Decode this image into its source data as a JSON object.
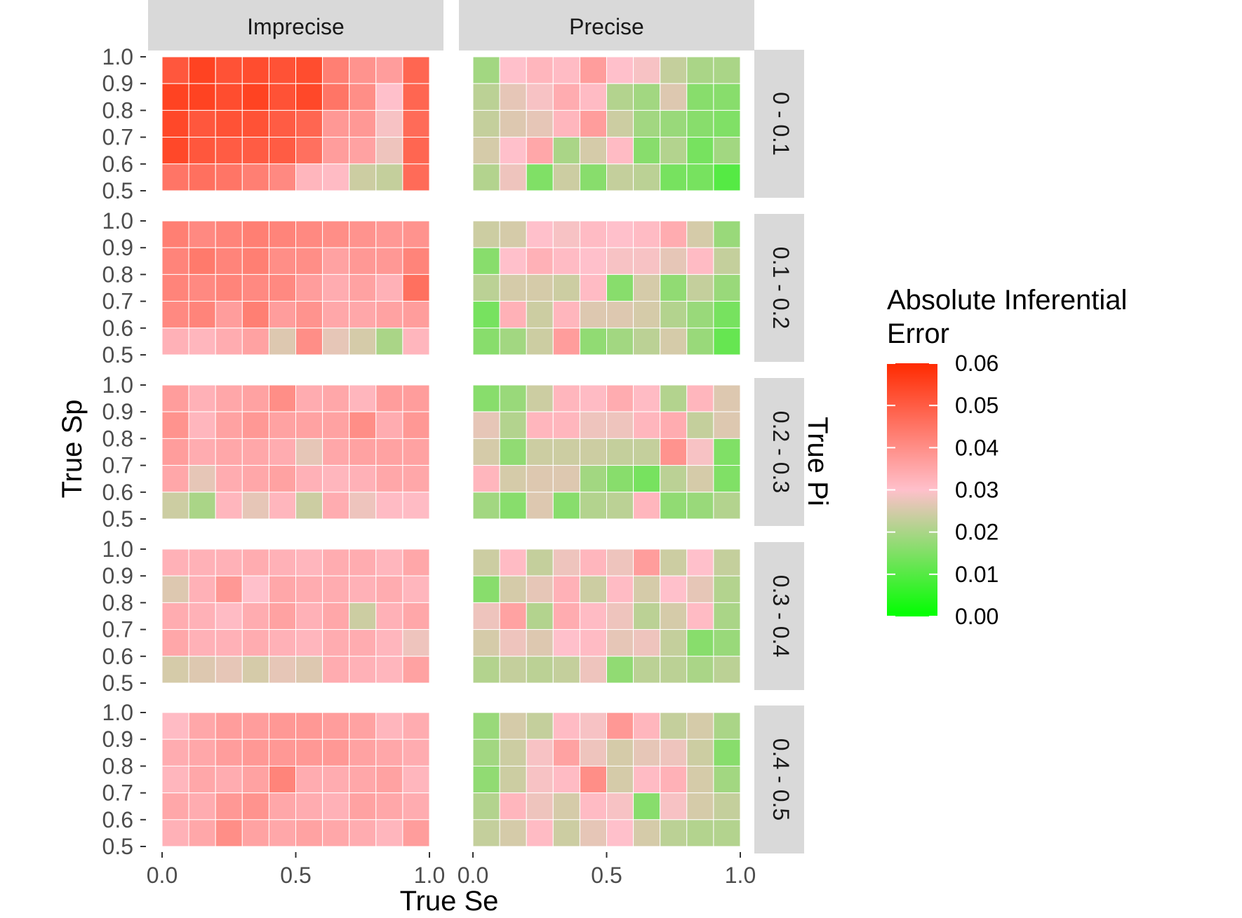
{
  "chart_data": {
    "type": "heatmap",
    "facet_columns": [
      "Imprecise",
      "Precise"
    ],
    "facet_rows": [
      "0 - 0.1",
      "0.1 - 0.2",
      "0.2 - 0.3",
      "0.3 - 0.4",
      "0.4 - 0.5"
    ],
    "xlabel": "True Se",
    "ylabel": "True Sp",
    "row_strip_title": "True Pi",
    "x_ticks": [
      "0.0",
      "0.5",
      "1.0"
    ],
    "y_ticks": [
      "0.5",
      "0.6",
      "0.7",
      "0.8",
      "0.9",
      "1.0"
    ],
    "xlim": [
      0,
      1
    ],
    "ylim": [
      0.5,
      1
    ],
    "n_x": 10,
    "n_y": 5,
    "legend": {
      "title": "Absolute Inferential Error",
      "title_lines": [
        "Absolute Inferential",
        "Error"
      ],
      "ticks": [
        "0.06",
        "0.05",
        "0.04",
        "0.03",
        "0.02",
        "0.01",
        "0.00"
      ],
      "range": [
        0,
        0.06
      ],
      "colors": {
        "low": "#00ff00",
        "mid": "#ffc0cb",
        "high": "#ff2a00"
      },
      "midpoint": 0.03,
      "placement": "right"
    },
    "panels": [
      {
        "pi": "0 - 0.1",
        "precision": "Imprecise",
        "values": [
          [
            0.051,
            0.055,
            0.052,
            0.053,
            0.052,
            0.053,
            0.043,
            0.039,
            0.037,
            0.048
          ],
          [
            0.055,
            0.055,
            0.053,
            0.055,
            0.052,
            0.054,
            0.045,
            0.04,
            0.03,
            0.048
          ],
          [
            0.054,
            0.051,
            0.052,
            0.052,
            0.05,
            0.048,
            0.038,
            0.038,
            0.029,
            0.047
          ],
          [
            0.054,
            0.051,
            0.05,
            0.05,
            0.05,
            0.046,
            0.037,
            0.036,
            0.028,
            0.048
          ],
          [
            0.045,
            0.046,
            0.045,
            0.043,
            0.041,
            0.032,
            0.031,
            0.024,
            0.023,
            0.047
          ]
        ]
      },
      {
        "pi": "0 - 0.1",
        "precision": "Precise",
        "values": [
          [
            0.019,
            0.03,
            0.032,
            0.031,
            0.037,
            0.03,
            0.029,
            0.023,
            0.02,
            0.02
          ],
          [
            0.022,
            0.027,
            0.029,
            0.034,
            0.031,
            0.021,
            0.019,
            0.026,
            0.016,
            0.016
          ],
          [
            0.023,
            0.026,
            0.027,
            0.032,
            0.037,
            0.024,
            0.019,
            0.018,
            0.016,
            0.015
          ],
          [
            0.025,
            0.03,
            0.035,
            0.02,
            0.025,
            0.031,
            0.016,
            0.021,
            0.014,
            0.019
          ],
          [
            0.021,
            0.028,
            0.015,
            0.024,
            0.016,
            0.023,
            0.022,
            0.014,
            0.014,
            0.01
          ]
        ]
      },
      {
        "pi": "0.1 - 0.2",
        "precision": "Imprecise",
        "values": [
          [
            0.043,
            0.041,
            0.042,
            0.043,
            0.042,
            0.041,
            0.04,
            0.039,
            0.038,
            0.039
          ],
          [
            0.042,
            0.044,
            0.042,
            0.043,
            0.04,
            0.04,
            0.036,
            0.038,
            0.038,
            0.042
          ],
          [
            0.042,
            0.041,
            0.042,
            0.041,
            0.041,
            0.037,
            0.034,
            0.036,
            0.033,
            0.046
          ],
          [
            0.041,
            0.042,
            0.037,
            0.043,
            0.037,
            0.039,
            0.035,
            0.035,
            0.036,
            0.037
          ],
          [
            0.033,
            0.032,
            0.034,
            0.036,
            0.026,
            0.04,
            0.027,
            0.025,
            0.02,
            0.032
          ]
        ]
      },
      {
        "pi": "0.1 - 0.2",
        "precision": "Precise",
        "values": [
          [
            0.024,
            0.025,
            0.03,
            0.029,
            0.031,
            0.03,
            0.031,
            0.034,
            0.025,
            0.018
          ],
          [
            0.016,
            0.03,
            0.033,
            0.031,
            0.03,
            0.029,
            0.029,
            0.027,
            0.031,
            0.023
          ],
          [
            0.022,
            0.025,
            0.025,
            0.024,
            0.031,
            0.016,
            0.025,
            0.017,
            0.023,
            0.018
          ],
          [
            0.014,
            0.033,
            0.024,
            0.032,
            0.026,
            0.026,
            0.025,
            0.021,
            0.018,
            0.014
          ],
          [
            0.016,
            0.019,
            0.024,
            0.037,
            0.017,
            0.019,
            0.022,
            0.025,
            0.018,
            0.012
          ]
        ]
      },
      {
        "pi": "0.2 - 0.3",
        "precision": "Imprecise",
        "values": [
          [
            0.037,
            0.033,
            0.035,
            0.036,
            0.04,
            0.034,
            0.035,
            0.032,
            0.037,
            0.037
          ],
          [
            0.039,
            0.032,
            0.036,
            0.038,
            0.036,
            0.036,
            0.036,
            0.04,
            0.034,
            0.038
          ],
          [
            0.037,
            0.034,
            0.035,
            0.035,
            0.034,
            0.027,
            0.035,
            0.036,
            0.036,
            0.036
          ],
          [
            0.035,
            0.027,
            0.034,
            0.035,
            0.036,
            0.033,
            0.032,
            0.033,
            0.035,
            0.035
          ],
          [
            0.024,
            0.02,
            0.032,
            0.027,
            0.032,
            0.024,
            0.034,
            0.028,
            0.031,
            0.031
          ]
        ]
      },
      {
        "pi": "0.2 - 0.3",
        "precision": "Precise",
        "values": [
          [
            0.016,
            0.018,
            0.024,
            0.032,
            0.031,
            0.034,
            0.031,
            0.021,
            0.032,
            0.026
          ],
          [
            0.027,
            0.021,
            0.032,
            0.032,
            0.028,
            0.028,
            0.032,
            0.034,
            0.023,
            0.026
          ],
          [
            0.025,
            0.017,
            0.024,
            0.024,
            0.024,
            0.023,
            0.023,
            0.039,
            0.029,
            0.015
          ],
          [
            0.032,
            0.025,
            0.026,
            0.026,
            0.019,
            0.016,
            0.014,
            0.022,
            0.025,
            0.015
          ],
          [
            0.019,
            0.016,
            0.026,
            0.016,
            0.021,
            0.022,
            0.032,
            0.017,
            0.018,
            0.021
          ]
        ]
      },
      {
        "pi": "0.3 - 0.4",
        "precision": "Imprecise",
        "values": [
          [
            0.033,
            0.033,
            0.033,
            0.034,
            0.033,
            0.032,
            0.034,
            0.034,
            0.032,
            0.035
          ],
          [
            0.026,
            0.033,
            0.038,
            0.03,
            0.035,
            0.034,
            0.034,
            0.033,
            0.034,
            0.032
          ],
          [
            0.034,
            0.033,
            0.031,
            0.034,
            0.036,
            0.033,
            0.035,
            0.024,
            0.033,
            0.035
          ],
          [
            0.035,
            0.033,
            0.033,
            0.034,
            0.033,
            0.032,
            0.034,
            0.034,
            0.032,
            0.028
          ],
          [
            0.025,
            0.026,
            0.027,
            0.025,
            0.027,
            0.026,
            0.034,
            0.033,
            0.032,
            0.036
          ]
        ]
      },
      {
        "pi": "0.3 - 0.4",
        "precision": "Precise",
        "values": [
          [
            0.024,
            0.031,
            0.023,
            0.028,
            0.032,
            0.028,
            0.037,
            0.024,
            0.03,
            0.023
          ],
          [
            0.016,
            0.025,
            0.027,
            0.033,
            0.024,
            0.031,
            0.025,
            0.03,
            0.027,
            0.021
          ],
          [
            0.028,
            0.036,
            0.021,
            0.034,
            0.031,
            0.028,
            0.022,
            0.025,
            0.031,
            0.02
          ],
          [
            0.025,
            0.028,
            0.026,
            0.03,
            0.031,
            0.027,
            0.028,
            0.023,
            0.016,
            0.018
          ],
          [
            0.021,
            0.023,
            0.022,
            0.023,
            0.028,
            0.017,
            0.022,
            0.022,
            0.02,
            0.022
          ]
        ]
      },
      {
        "pi": "0.4 - 0.5",
        "precision": "Imprecise",
        "values": [
          [
            0.031,
            0.035,
            0.037,
            0.037,
            0.038,
            0.038,
            0.037,
            0.036,
            0.032,
            0.034
          ],
          [
            0.034,
            0.035,
            0.037,
            0.038,
            0.038,
            0.038,
            0.038,
            0.036,
            0.035,
            0.034
          ],
          [
            0.032,
            0.035,
            0.034,
            0.036,
            0.042,
            0.034,
            0.034,
            0.035,
            0.036,
            0.032
          ],
          [
            0.035,
            0.034,
            0.038,
            0.039,
            0.035,
            0.034,
            0.033,
            0.036,
            0.035,
            0.034
          ],
          [
            0.033,
            0.035,
            0.04,
            0.036,
            0.035,
            0.036,
            0.035,
            0.034,
            0.032,
            0.037
          ]
        ]
      },
      {
        "pi": "0.4 - 0.5",
        "precision": "Precise",
        "values": [
          [
            0.018,
            0.025,
            0.023,
            0.031,
            0.029,
            0.038,
            0.032,
            0.023,
            0.025,
            0.02
          ],
          [
            0.019,
            0.024,
            0.029,
            0.036,
            0.028,
            0.025,
            0.027,
            0.028,
            0.024,
            0.016
          ],
          [
            0.017,
            0.024,
            0.029,
            0.031,
            0.04,
            0.025,
            0.031,
            0.033,
            0.025,
            0.019
          ],
          [
            0.021,
            0.032,
            0.028,
            0.025,
            0.031,
            0.029,
            0.016,
            0.029,
            0.025,
            0.023
          ],
          [
            0.023,
            0.025,
            0.031,
            0.024,
            0.027,
            0.03,
            0.025,
            0.022,
            0.021,
            0.021
          ]
        ]
      }
    ]
  }
}
